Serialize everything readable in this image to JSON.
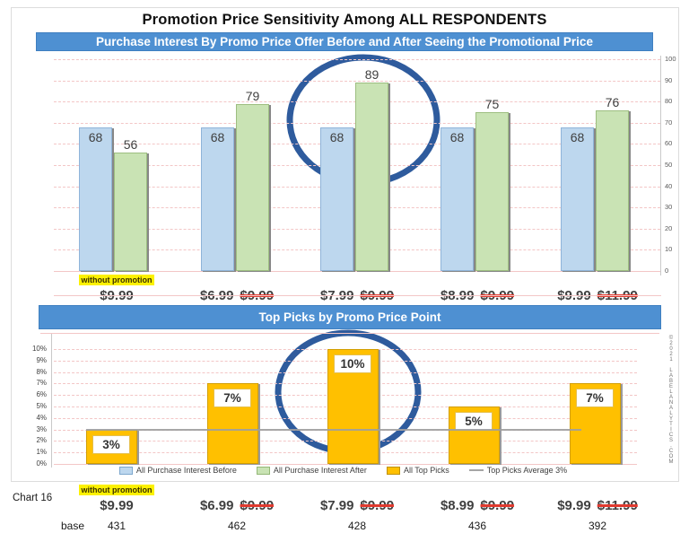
{
  "title": "Promotion Price Sensitivity Among ALL RESPONDENTS",
  "banners": {
    "chart1": "Purchase Interest By Promo Price Offer Before and After Seeing the Promotional Price",
    "chart2": "Top Picks by Promo Price Point"
  },
  "watermark": "©2021 LABELANALYTICS.COM",
  "footer": {
    "chart_label": "Chart 16",
    "base_label": "base"
  },
  "price_points": [
    {
      "note": "without promotion",
      "price": "$9.99",
      "was": ""
    },
    {
      "note": "",
      "price": "$6.99",
      "was": "$9.99"
    },
    {
      "note": "",
      "price": "$7.99",
      "was": "$9.99"
    },
    {
      "note": "",
      "price": "$8.99",
      "was": "$9.99"
    },
    {
      "note": "",
      "price": "$9.99",
      "was": "$11.99"
    }
  ],
  "base_values": [
    431,
    462,
    428,
    436,
    392
  ],
  "legend": [
    {
      "label": "All Purchase Interest Before",
      "swatch": "#BDD7EE",
      "border": "#7da7cd"
    },
    {
      "label": "All Purchase Interest After",
      "swatch": "#C9E3B4",
      "border": "#94b877"
    },
    {
      "label": "All Top Picks",
      "swatch": "#FFC000",
      "border": "#bf9000"
    },
    {
      "label": "Top Picks Average 3%",
      "swatch": "line",
      "border": "#a6a6a6"
    }
  ],
  "colors": {
    "banner_blue": "#4E90D2",
    "bar_before": "#BDD7EE",
    "bar_after": "#C9E3B4",
    "bar_top_picks": "#FFC000",
    "highlight_circle": "#2E5B9D",
    "gridline": "#f3c6c6",
    "strike_red": "#E03A2F",
    "note_highlight": "#FCF101"
  },
  "chart_data": [
    {
      "type": "bar",
      "title": "Purchase Interest By Promo Price Offer Before and After Seeing the Promotional Price",
      "categories": [
        "$9.99 (without promotion)",
        "$6.99 (reg $9.99)",
        "$7.99 (reg $9.99)",
        "$8.99 (reg $9.99)",
        "$9.99 (reg $11.99)"
      ],
      "series": [
        {
          "name": "All Purchase Interest Before",
          "color": "#BDD7EE",
          "values": [
            68,
            68,
            68,
            68,
            68
          ]
        },
        {
          "name": "All Purchase Interest After",
          "color": "#C9E3B4",
          "values": [
            56,
            79,
            89,
            75,
            76
          ]
        }
      ],
      "ylim": [
        0,
        100
      ],
      "ytick_step": 10,
      "yaxis_side": "right",
      "grid": true,
      "annotation": "blue circle highlighting the $7.99 group (after = 89)"
    },
    {
      "type": "bar",
      "title": "Top Picks by Promo Price Point",
      "categories": [
        "$9.99 (without promotion)",
        "$6.99 (reg $9.99)",
        "$7.99 (reg $9.99)",
        "$8.99 (reg $9.99)",
        "$9.99 (reg $11.99)"
      ],
      "series": [
        {
          "name": "All Top Picks",
          "color": "#FFC000",
          "values": [
            3,
            7,
            10,
            5,
            7
          ]
        }
      ],
      "value_labels": [
        "3%",
        "7%",
        "10%",
        "5%",
        "7%"
      ],
      "ylim": [
        0,
        10
      ],
      "ytick_step": 1,
      "ytick_suffix": "%",
      "yaxis_side": "left",
      "grid": true,
      "average_line": {
        "label": "Top Picks Average 3%",
        "value": 3
      },
      "annotation": "blue circle highlighting the $7.99 bar (10%)"
    }
  ]
}
